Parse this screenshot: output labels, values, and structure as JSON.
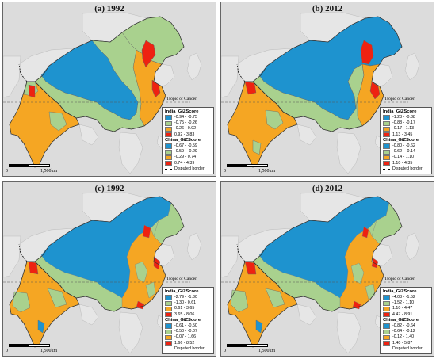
{
  "colors": {
    "background": "#dcdcdc",
    "other_land": "#e6e6e6",
    "class1": "#1e93cf",
    "class2": "#a9d18e",
    "class3": "#f5a623",
    "class4": "#ee2211"
  },
  "common": {
    "tropic_label": "Tropic of Cancer",
    "scale_zero": "0",
    "scale_distance": "1,500km",
    "disputed_label": "Disputed border"
  },
  "panels": [
    {
      "title": "(a) 1992",
      "india_header": "India_GiZScore",
      "india_classes": [
        "-0.94 - -0.75",
        "-0.75 - -0.26",
        "-0.26 - 0.92",
        "0.92 - 3.83"
      ],
      "china_header": "China_GiZScore",
      "china_classes": [
        "-0.67 - -0.59",
        "-0.59 - -0.29",
        "-0.29 - 0.74",
        "0.74 - 4.39"
      ]
    },
    {
      "title": "(b) 2012",
      "india_header": "India_GiZScore",
      "india_classes": [
        "-1.28 - -0.88",
        "-0.88 - -0.17",
        "-0.17 - 1.13",
        "1.13 - 3.45"
      ],
      "china_header": "China_GiZScore",
      "china_classes": [
        "-0.80 - -0.62",
        "-0.62 - -0.14",
        "-0.14 - 1.10",
        "1.10 - 4.35"
      ]
    },
    {
      "title": "(c) 1992",
      "india_header": "India_GiZScore",
      "india_classes": [
        "-2.79 - -1.30",
        "-1.30 - 0.61",
        "0.61 - 3.65",
        "3.65 - 8.06"
      ],
      "china_header": "China_GiZScore",
      "china_classes": [
        "-0.61 - -0.50",
        "-0.50 - -0.07",
        "-0.07 - 1.66",
        "1.66 - 8.52"
      ]
    },
    {
      "title": "(d) 2012",
      "india_header": "India_GiZScore",
      "india_classes": [
        "-4.08 - -1.52",
        "-1.52 - 1.10",
        "1.10 - 4.47",
        "4.47 - 8.91"
      ],
      "china_header": "China_GiZScore",
      "china_classes": [
        "-0.82 - -0.64",
        "-0.64 - -0.12",
        "-0.12 - 1.40",
        "1.40 - 5.87"
      ]
    }
  ]
}
